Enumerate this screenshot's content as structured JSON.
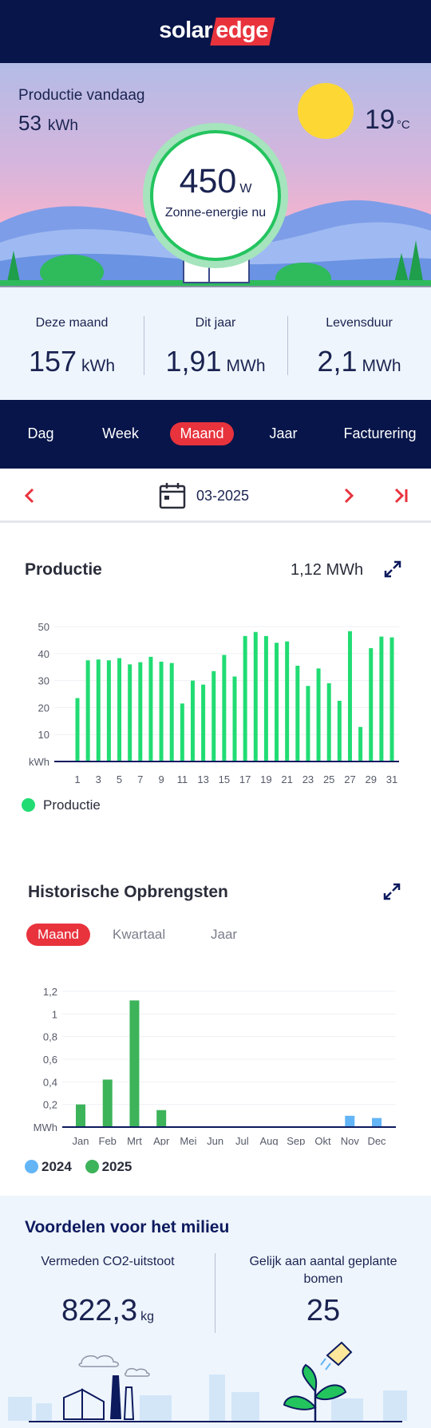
{
  "header": {
    "logo_solar": "solar",
    "logo_edge": "edge"
  },
  "hero": {
    "production_today_label": "Productie vandaag",
    "production_today_value": "53",
    "production_today_unit": "kWh",
    "power_value": "450",
    "power_unit": "W",
    "power_label": "Zonne-energie nu",
    "temperature_value": "19",
    "temperature_unit": "°C"
  },
  "stats": [
    {
      "label": "Deze maand",
      "value": "157",
      "unit": "kWh"
    },
    {
      "label": "Dit jaar",
      "value": "1,91",
      "unit": "MWh"
    },
    {
      "label": "Levensduur",
      "value": "2,1",
      "unit": "MWh"
    }
  ],
  "tabs": [
    {
      "label": "Dag",
      "active": false
    },
    {
      "label": "Week",
      "active": false
    },
    {
      "label": "Maand",
      "active": true
    },
    {
      "label": "Jaar",
      "active": false
    },
    {
      "label": "Facturering",
      "active": false
    }
  ],
  "date_nav": {
    "prev_symbol": "‹",
    "next_symbol": "›",
    "last_symbol": "›|",
    "date": "03-2025"
  },
  "production": {
    "title": "Productie",
    "total": "1,12 MWh",
    "legend": "Productie"
  },
  "history": {
    "title": "Historische Opbrengsten",
    "subtabs": [
      "Maand",
      "Kwartaal",
      "Jaar"
    ],
    "legend_2024": "2024",
    "legend_2025": "2025"
  },
  "environment": {
    "title": "Voordelen voor het milieu",
    "co2_label": "Vermeden CO2-uitstoot",
    "co2_value": "822,3",
    "co2_unit": "kg",
    "trees_label": "Gelijk aan aantal geplante bomen",
    "trees_value": "25"
  },
  "colors": {
    "navy": "#07154a",
    "accent_red": "#e8333d",
    "production_green": "#21dc73",
    "history_2025": "#3db35a",
    "history_2024": "#63b5f6"
  },
  "chart_data": [
    {
      "type": "bar",
      "ylabel": "kWh",
      "x": [
        1,
        2,
        3,
        4,
        5,
        6,
        7,
        8,
        9,
        10,
        11,
        12,
        13,
        14,
        15,
        16,
        17,
        18,
        19,
        20,
        21,
        22,
        23,
        24,
        25,
        26,
        27,
        28,
        29,
        30,
        31
      ],
      "xticks": [
        "1",
        "3",
        "5",
        "7",
        "9",
        "11",
        "13",
        "15",
        "17",
        "19",
        "21",
        "23",
        "25",
        "27",
        "29",
        "31"
      ],
      "yticks": [
        "10",
        "20",
        "30",
        "40",
        "50"
      ],
      "ylim": [
        0,
        50
      ],
      "series": [
        {
          "name": "Productie",
          "values": [
            23.5,
            37.5,
            37.8,
            37.5,
            38.3,
            36,
            36.8,
            38.8,
            37,
            36.5,
            21.5,
            30,
            28.5,
            33.5,
            39.5,
            31.5,
            46.5,
            48,
            46.5,
            44,
            44.5,
            35.5,
            28,
            34.5,
            29,
            22.5,
            48.3,
            12.8,
            42,
            46.3,
            46
          ]
        }
      ]
    },
    {
      "type": "bar",
      "ylabel": "MWh",
      "categories": [
        "Jan",
        "Feb",
        "Mrt",
        "Apr",
        "Mei",
        "Jun",
        "Jul",
        "Aug",
        "Sep",
        "Okt",
        "Nov",
        "Dec"
      ],
      "yticks": [
        "0,2",
        "0,4",
        "0,6",
        "0,8",
        "1",
        "1,2"
      ],
      "ylim": [
        0,
        1.2
      ],
      "series": [
        {
          "name": "2024",
          "values": [
            null,
            null,
            null,
            null,
            null,
            null,
            null,
            null,
            null,
            null,
            0.1,
            0.08
          ]
        },
        {
          "name": "2025",
          "values": [
            0.2,
            0.42,
            1.12,
            0.15,
            null,
            null,
            null,
            null,
            null,
            null,
            null,
            null
          ]
        }
      ]
    }
  ]
}
